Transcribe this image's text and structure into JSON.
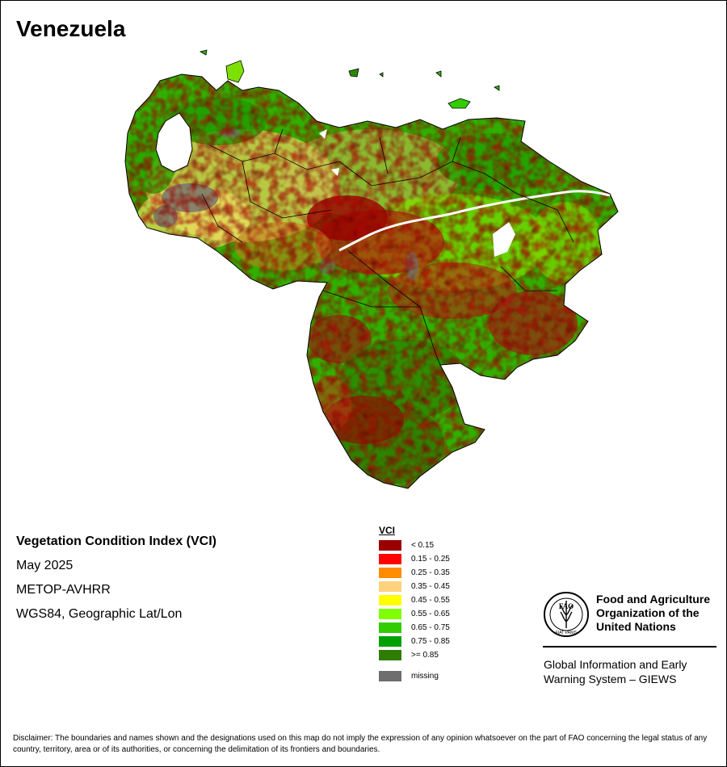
{
  "map": {
    "title": "Venezuela"
  },
  "info": {
    "heading": "Vegetation Condition Index (VCI)",
    "date": "May 2025",
    "sensor": "METOP-AVHRR",
    "projection": "WGS84, Geographic Lat/Lon"
  },
  "legend": {
    "title": "VCI",
    "classes": [
      {
        "label": "< 0.15",
        "color": "#9b0000"
      },
      {
        "label": "0.15 - 0.25",
        "color": "#ff0000"
      },
      {
        "label": "0.25 - 0.35",
        "color": "#ff8c00"
      },
      {
        "label": "0.35 - 0.45",
        "color": "#ffd27f"
      },
      {
        "label": "0.45 - 0.55",
        "color": "#ffff00"
      },
      {
        "label": "0.55 - 0.65",
        "color": "#80ff00"
      },
      {
        "label": "0.65 - 0.75",
        "color": "#32cd00"
      },
      {
        "label": "0.75 - 0.85",
        "color": "#00a000"
      },
      {
        "label": ">= 0.85",
        "color": "#2e7d00"
      }
    ],
    "missing": {
      "label": "missing",
      "color": "#6e6e6e"
    }
  },
  "org": {
    "name_line1": "Food and Agriculture",
    "name_line2": "Organization of the",
    "name_line3": "United Nations",
    "logo_letters": "FAO",
    "logo_motto": "FIAT PANIS",
    "giews_line1": "Global Information and Early",
    "giews_line2": "Warning System – GIEWS"
  },
  "disclaimer": "Disclaimer: The boundaries and names shown and the designations used on this map do not imply the expression of any opinion whatsoever on the part of FAO concerning the legal status of any country, territory, area or of its authorities, or concerning the delimitation of its frontiers and boundaries."
}
